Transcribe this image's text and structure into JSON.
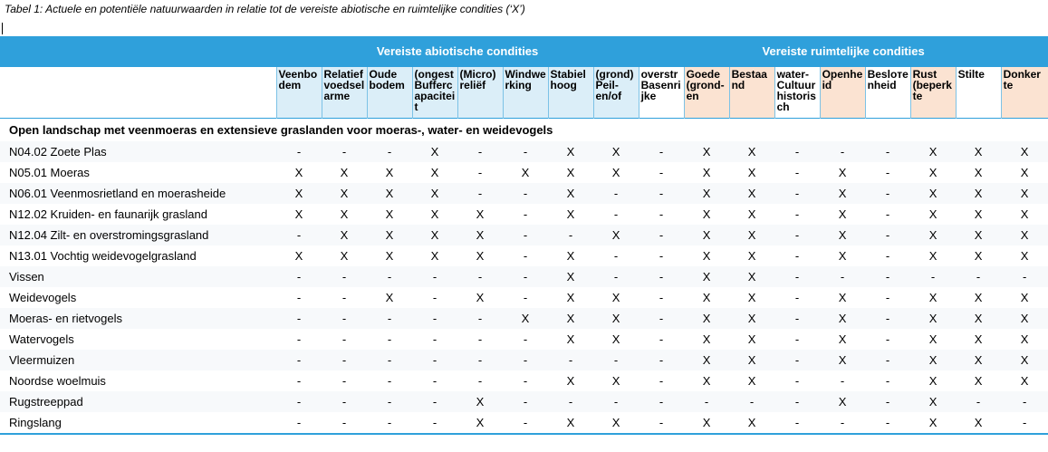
{
  "caption": "Tabel 1: Actuele en potentiële natuurwaarden in relatie tot de vereiste abiotische en ruimtelijke condities (‘X’)",
  "groups": {
    "abiotic": "Vereiste abiotische condities",
    "spatial": "Vereiste ruimtelijke condities"
  },
  "columns": [
    "Veenbo dem",
    "Relatief voedsel arme",
    "Oude bodem",
    "(ongest Bufferc apacitei t",
    "(Micro) reliëf",
    "Windwe rking",
    "Stabiel hoog",
    "(grond) Peil- en/of",
    "overstr Basenri jke",
    "Goede (grond- en",
    "Bestaa nd",
    "water- Cultuur historis ch",
    "Openhe id",
    "Besloте nheid",
    "Rust (beperk te",
    "Stilte",
    "Donker te"
  ],
  "section_title": "Open landschap met veenmoeras en extensieve graslanden voor moeras-, water- en weidevogels",
  "rows": [
    {
      "name": "N04.02 Zoete Plas",
      "values": [
        "-",
        "-",
        "-",
        "X",
        "-",
        "-",
        "X",
        "X",
        "-",
        "X",
        "X",
        "-",
        "-",
        "-",
        "X",
        "X",
        "X"
      ]
    },
    {
      "name": "N05.01 Moeras",
      "values": [
        "X",
        "X",
        "X",
        "X",
        "-",
        "X",
        "X",
        "X",
        "-",
        "X",
        "X",
        "-",
        "X",
        "-",
        "X",
        "X",
        "X"
      ]
    },
    {
      "name": "N06.01 Veenmosrietland en moerasheide",
      "values": [
        "X",
        "X",
        "X",
        "X",
        "-",
        "-",
        "X",
        "-",
        "-",
        "X",
        "X",
        "-",
        "X",
        "-",
        "X",
        "X",
        "X"
      ]
    },
    {
      "name": "N12.02 Kruiden- en faunarijk grasland",
      "values": [
        "X",
        "X",
        "X",
        "X",
        "X",
        "-",
        "X",
        "-",
        "-",
        "X",
        "X",
        "-",
        "X",
        "-",
        "X",
        "X",
        "X"
      ]
    },
    {
      "name": "N12.04 Zilt- en overstromingsgrasland",
      "values": [
        "-",
        "X",
        "X",
        "X",
        "X",
        "-",
        "-",
        "X",
        "-",
        "X",
        "X",
        "-",
        "X",
        "-",
        "X",
        "X",
        "X"
      ]
    },
    {
      "name": "N13.01 Vochtig weidevogelgrasland",
      "values": [
        "X",
        "X",
        "X",
        "X",
        "X",
        "-",
        "X",
        "-",
        "-",
        "X",
        "X",
        "-",
        "X",
        "-",
        "X",
        "X",
        "X"
      ]
    },
    {
      "name": "Vissen",
      "values": [
        "-",
        "-",
        "-",
        "-",
        "-",
        "-",
        "X",
        "-",
        "-",
        "X",
        "X",
        "-",
        "-",
        "-",
        "-",
        "-",
        "-"
      ]
    },
    {
      "name": "Weidevogels",
      "values": [
        "-",
        "-",
        "X",
        "-",
        "X",
        "-",
        "X",
        "X",
        "-",
        "X",
        "X",
        "-",
        "X",
        "-",
        "X",
        "X",
        "X"
      ]
    },
    {
      "name": "Moeras- en rietvogels",
      "values": [
        "-",
        "-",
        "-",
        "-",
        "-",
        "X",
        "X",
        "X",
        "-",
        "X",
        "X",
        "-",
        "X",
        "-",
        "X",
        "X",
        "X"
      ]
    },
    {
      "name": "Watervogels",
      "values": [
        "-",
        "-",
        "-",
        "-",
        "-",
        "-",
        "X",
        "X",
        "-",
        "X",
        "X",
        "-",
        "X",
        "-",
        "X",
        "X",
        "X"
      ]
    },
    {
      "name": "Vleermuizen",
      "values": [
        "-",
        "-",
        "-",
        "-",
        "-",
        "-",
        "-",
        "-",
        "-",
        "X",
        "X",
        "-",
        "X",
        "-",
        "X",
        "X",
        "X"
      ]
    },
    {
      "name": "Noordse woelmuis",
      "values": [
        "-",
        "-",
        "-",
        "-",
        "-",
        "-",
        "X",
        "X",
        "-",
        "X",
        "X",
        "-",
        "-",
        "-",
        "X",
        "X",
        "X"
      ]
    },
    {
      "name": "Rugstreeppad",
      "values": [
        "-",
        "-",
        "-",
        "-",
        "X",
        "-",
        "-",
        "-",
        "-",
        "-",
        "-",
        "-",
        "X",
        "-",
        "X",
        "-",
        "-"
      ]
    },
    {
      "name": "Ringslang",
      "values": [
        "-",
        "-",
        "-",
        "-",
        "X",
        "-",
        "X",
        "X",
        "-",
        "X",
        "X",
        "-",
        "-",
        "-",
        "X",
        "X",
        "-"
      ]
    }
  ]
}
